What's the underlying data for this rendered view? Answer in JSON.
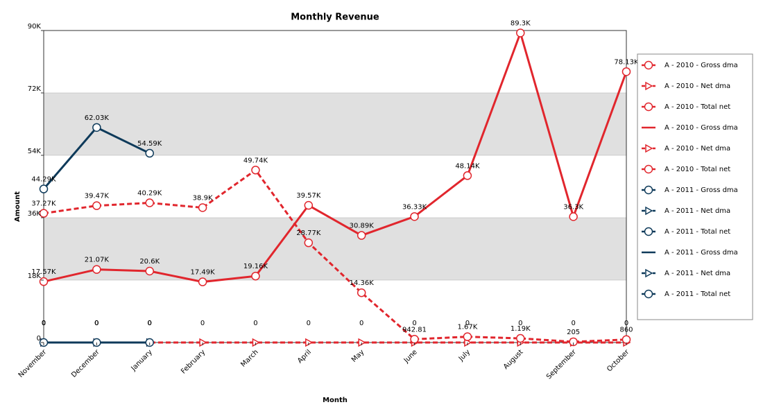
{
  "chart_data": {
    "type": "line",
    "title": "Monthly Revenue",
    "x_label": "Month",
    "y_label": "Amount",
    "categories": [
      "November",
      "December",
      "January",
      "February",
      "March",
      "April",
      "May",
      "June",
      "July",
      "August",
      "September",
      "October"
    ],
    "ylim": [
      0,
      90000
    ],
    "yticks": [
      {
        "value": 0,
        "label": "0"
      },
      {
        "value": 18000,
        "label": "18K"
      },
      {
        "value": 36000,
        "label": "36K"
      },
      {
        "value": 54000,
        "label": "54K"
      },
      {
        "value": 72000,
        "label": "72K"
      },
      {
        "value": 90000,
        "label": "90K"
      }
    ],
    "grid": "bands",
    "band_color": "#e0e0e0",
    "legend": "right",
    "series": [
      {
        "name": "A - 2010 - Gross dma",
        "color": "#e1262d",
        "dash": false,
        "marker": "circle",
        "values": [
          17570,
          21070,
          20600,
          17490,
          19160,
          39570,
          30890,
          36330,
          48140,
          89300,
          36300,
          78130
        ],
        "value_labels": [
          "17.57K",
          "21.07K",
          "20.6K",
          "17.49K",
          "19.16K",
          "39.57K",
          "30.89K",
          "36.33K",
          "48.14K",
          "89.3K",
          "36.3K",
          "78.13K"
        ]
      },
      {
        "name": "A - 2010 - Net dma",
        "color": "#e1262d",
        "dash": true,
        "marker": "triangle",
        "values": [
          0,
          0,
          0,
          0,
          0,
          0,
          0,
          0,
          0,
          0,
          0,
          0
        ],
        "value_labels": [
          "0",
          "0",
          "0",
          "0",
          "0",
          "0",
          "0",
          "0",
          "0",
          "0",
          "0",
          "0"
        ]
      },
      {
        "name": "A - 2010 - Total net",
        "color": "#e1262d",
        "dash": true,
        "marker": "circle",
        "values": [
          37270,
          39470,
          40290,
          38900,
          49740,
          28770,
          14360,
          942.81,
          1670,
          1190,
          205,
          860
        ],
        "value_labels": [
          "37.27K",
          "39.47K",
          "40.29K",
          "38.9K",
          "49.74K",
          "28.77K",
          "14.36K",
          "942.81",
          "1.67K",
          "1.19K",
          "205",
          "860"
        ]
      },
      {
        "name": "A - 2010 - Gross dma",
        "color": "#e1262d",
        "dash": false,
        "marker": "none",
        "values": [
          null,
          null,
          null,
          null,
          null,
          null,
          null,
          null,
          null,
          null,
          null,
          null
        ]
      },
      {
        "name": "A - 2010 - Net dma",
        "color": "#e1262d",
        "dash": true,
        "marker": "triangle",
        "values": [
          null,
          null,
          null,
          null,
          null,
          null,
          null,
          null,
          null,
          null,
          null,
          null
        ]
      },
      {
        "name": "A - 2010 - Total net",
        "color": "#e1262d",
        "dash": false,
        "marker": "circle",
        "values": [
          null,
          null,
          null,
          null,
          null,
          null,
          null,
          null,
          null,
          null,
          null,
          null
        ]
      },
      {
        "name": "A - 2011 - Gross dma",
        "color": "#0e3a5a",
        "dash": false,
        "marker": "circle",
        "values": [
          44290,
          62030,
          54590,
          null,
          null,
          null,
          null,
          null,
          null,
          null,
          null,
          null
        ],
        "value_labels": [
          "44.29K",
          "62.03K",
          "54.59K",
          null,
          null,
          null,
          null,
          null,
          null,
          null,
          null,
          null
        ]
      },
      {
        "name": "A - 2011 - Net dma",
        "color": "#0e3a5a",
        "dash": true,
        "marker": "triangle",
        "values": [
          0,
          0,
          0,
          null,
          null,
          null,
          null,
          null,
          null,
          null,
          null,
          null
        ],
        "value_labels": [
          "0",
          "0",
          "0",
          null,
          null,
          null,
          null,
          null,
          null,
          null,
          null,
          null
        ]
      },
      {
        "name": "A - 2011 - Total net",
        "color": "#0e3a5a",
        "dash": false,
        "marker": "circle",
        "values": [
          0,
          0,
          0,
          null,
          null,
          null,
          null,
          null,
          null,
          null,
          null,
          null
        ],
        "value_labels": [
          "0",
          "0",
          "0",
          null,
          null,
          null,
          null,
          null,
          null,
          null,
          null,
          null
        ]
      },
      {
        "name": "A - 2011 - Gross dma",
        "color": "#0e3a5a",
        "dash": false,
        "marker": "none",
        "values": [
          null,
          null,
          null,
          null,
          null,
          null,
          null,
          null,
          null,
          null,
          null,
          null
        ]
      },
      {
        "name": "A - 2011 - Net dma",
        "color": "#0e3a5a",
        "dash": true,
        "marker": "triangle",
        "values": [
          null,
          null,
          null,
          null,
          null,
          null,
          null,
          null,
          null,
          null,
          null,
          null
        ]
      },
      {
        "name": "A - 2011 - Total net",
        "color": "#0e3a5a",
        "dash": false,
        "marker": "circle",
        "values": [
          null,
          null,
          null,
          null,
          null,
          null,
          null,
          null,
          null,
          null,
          null,
          null
        ]
      }
    ]
  }
}
